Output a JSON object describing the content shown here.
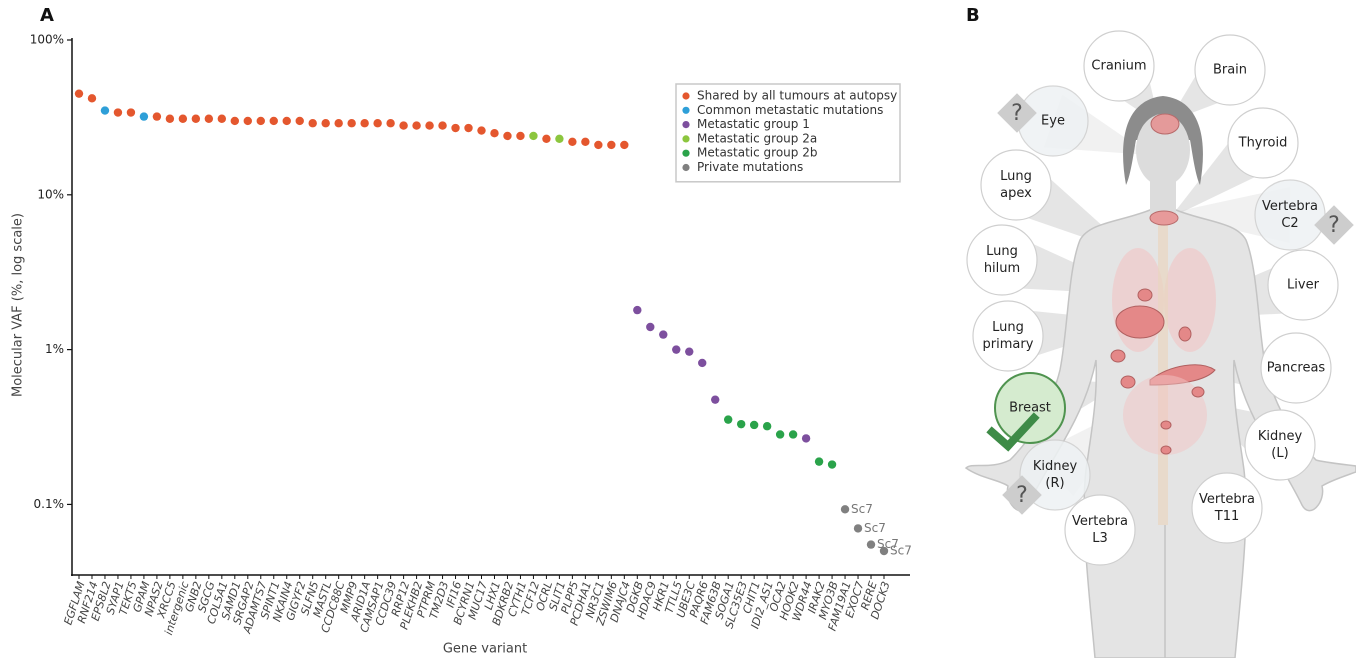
{
  "chart_data": {
    "type": "scatter",
    "panel_label": "A",
    "y_label": "Molecular VAF (%, log scale)",
    "x_label": "Gene variant",
    "log_scale": true,
    "legend": "upper right",
    "ylim": [
      0.035,
      100
    ],
    "yticks": [
      {
        "value": 100,
        "label": "100%"
      },
      {
        "value": 10,
        "label": "10%"
      },
      {
        "value": 1,
        "label": "1%"
      },
      {
        "value": 0.1,
        "label": "0.1%"
      }
    ],
    "categories": [
      "EGFLAM",
      "RNF214",
      "EPS8L2",
      "SYAP1",
      "TEKT5",
      "GPAM",
      "NPAS2",
      "XRCC5",
      "intergenic",
      "GNB2",
      "SGCG",
      "COL5A1",
      "SAMD1",
      "SRGAP2",
      "ADAMTS7",
      "SPINT1",
      "NKAIN4",
      "GIGYF2",
      "SLFN5",
      "MASTL",
      "CCDC88C",
      "MMP9",
      "ARID1A",
      "CAMSAP1",
      "CCDC39",
      "RRP12",
      "PLEKHB2",
      "PTPRM",
      "TM2D3",
      "IFI16",
      "BCYRN1",
      "MUC17",
      "LHX1",
      "BDKRB2",
      "CYTH1",
      "TCF12",
      "OCRL",
      "SLIT1",
      "PLPP5",
      "PCDHA1",
      "NR3C1",
      "ZSWIM6",
      "DNAJC4",
      "DGKB",
      "HDAC9",
      "HKR1",
      "TTLL5",
      "UBE3C",
      "PAQR6",
      "FAM63B",
      "SOGA1",
      "SLC35E3",
      "CHIT1",
      "IDI2_AS1",
      "OCA2",
      "HOOK2",
      "WDR44",
      "IRAK2",
      "MYO3B",
      "FAM19A1",
      "EXOC7",
      "RERE",
      "DOCK3"
    ],
    "series": [
      {
        "name": "Shared by all tumours at autopsy",
        "color": "#e4572e",
        "values": [
          45,
          42,
          null,
          34,
          34,
          null,
          32,
          31,
          31,
          31,
          31,
          31,
          30,
          30,
          30,
          30,
          30,
          30,
          29,
          29,
          29,
          29,
          29,
          29,
          29,
          28,
          28,
          28,
          28,
          27,
          27,
          26,
          25,
          24,
          24,
          null,
          23,
          null,
          22,
          22,
          21,
          21,
          21,
          null,
          null,
          null,
          null,
          null,
          null,
          null,
          null,
          null,
          null,
          null,
          null,
          null,
          null,
          null,
          null,
          null,
          null,
          null,
          null
        ]
      },
      {
        "name": "Common metastatic mutations",
        "color": "#2e9fd8",
        "values": [
          null,
          null,
          35,
          null,
          null,
          32,
          null,
          null,
          null,
          null,
          null,
          null,
          null,
          null,
          null,
          null,
          null,
          null,
          null,
          null,
          null,
          null,
          null,
          null,
          null,
          null,
          null,
          null,
          null,
          null,
          null,
          null,
          null,
          null,
          null,
          null,
          null,
          null,
          null,
          null,
          null,
          null,
          null,
          null,
          null,
          null,
          null,
          null,
          null,
          null,
          null,
          null,
          null,
          null,
          null,
          null,
          null,
          null,
          null,
          null,
          null,
          null,
          null
        ]
      },
      {
        "name": "Metastatic group 1",
        "color": "#7d4f9e",
        "values": [
          null,
          null,
          null,
          null,
          null,
          null,
          null,
          null,
          null,
          null,
          null,
          null,
          null,
          null,
          null,
          null,
          null,
          null,
          null,
          null,
          null,
          null,
          null,
          null,
          null,
          null,
          null,
          null,
          null,
          null,
          null,
          null,
          null,
          null,
          null,
          null,
          null,
          null,
          null,
          null,
          null,
          null,
          null,
          1.8,
          1.4,
          1.25,
          1.0,
          0.97,
          0.82,
          0.475,
          null,
          null,
          null,
          null,
          null,
          null,
          0.267,
          null,
          null,
          null,
          null,
          null,
          null
        ]
      },
      {
        "name": "Metastatic group 2a",
        "color": "#8cc63e",
        "values": [
          null,
          null,
          null,
          null,
          null,
          null,
          null,
          null,
          null,
          null,
          null,
          null,
          null,
          null,
          null,
          null,
          null,
          null,
          null,
          null,
          null,
          null,
          null,
          null,
          null,
          null,
          null,
          null,
          null,
          null,
          null,
          null,
          null,
          null,
          null,
          24,
          null,
          23,
          null,
          null,
          null,
          null,
          null,
          null,
          null,
          null,
          null,
          null,
          null,
          null,
          null,
          null,
          null,
          null,
          null,
          null,
          null,
          null,
          null,
          null,
          null,
          null,
          null
        ]
      },
      {
        "name": "Metastatic group 2b",
        "color": "#2aa34a",
        "values": [
          null,
          null,
          null,
          null,
          null,
          null,
          null,
          null,
          null,
          null,
          null,
          null,
          null,
          null,
          null,
          null,
          null,
          null,
          null,
          null,
          null,
          null,
          null,
          null,
          null,
          null,
          null,
          null,
          null,
          null,
          null,
          null,
          null,
          null,
          null,
          null,
          null,
          null,
          null,
          null,
          null,
          null,
          null,
          null,
          null,
          null,
          null,
          null,
          null,
          null,
          0.353,
          0.33,
          0.326,
          0.32,
          0.283,
          0.283,
          null,
          0.189,
          0.181,
          null,
          null,
          null,
          null
        ]
      },
      {
        "name": "Private mutations",
        "color": "#808080",
        "values": [
          null,
          null,
          null,
          null,
          null,
          null,
          null,
          null,
          null,
          null,
          null,
          null,
          null,
          null,
          null,
          null,
          null,
          null,
          null,
          null,
          null,
          null,
          null,
          null,
          null,
          null,
          null,
          null,
          null,
          null,
          null,
          null,
          null,
          null,
          null,
          null,
          null,
          null,
          null,
          null,
          null,
          null,
          null,
          null,
          null,
          null,
          null,
          null,
          null,
          null,
          null,
          null,
          null,
          null,
          null,
          null,
          null,
          null,
          null,
          0.093,
          0.07,
          0.055,
          0.05
        ],
        "labels": [
          null,
          null,
          null,
          null,
          null,
          null,
          null,
          null,
          null,
          null,
          null,
          null,
          null,
          null,
          null,
          null,
          null,
          null,
          null,
          null,
          null,
          null,
          null,
          null,
          null,
          null,
          null,
          null,
          null,
          null,
          null,
          null,
          null,
          null,
          null,
          null,
          null,
          null,
          null,
          null,
          null,
          null,
          null,
          null,
          null,
          null,
          null,
          null,
          null,
          null,
          null,
          null,
          null,
          null,
          null,
          null,
          null,
          null,
          null,
          "Sc7",
          "Sc7",
          "Sc7",
          "Sc7"
        ]
      }
    ]
  },
  "diagram": {
    "panel_label": "B",
    "sites": [
      {
        "lines": [
          "Cranium"
        ]
      },
      {
        "lines": [
          "Brain"
        ]
      },
      {
        "lines": [
          "Eye"
        ],
        "flag": "?"
      },
      {
        "lines": [
          "Thyroid"
        ]
      },
      {
        "lines": [
          "Lung",
          "apex"
        ]
      },
      {
        "lines": [
          "Vertebra",
          "C2"
        ],
        "flag": "?"
      },
      {
        "lines": [
          "Lung",
          "hilum"
        ]
      },
      {
        "lines": [
          "Liver"
        ]
      },
      {
        "lines": [
          "Lung",
          "primary"
        ]
      },
      {
        "lines": [
          "Pancreas"
        ]
      },
      {
        "lines": [
          "Breast"
        ]
      },
      {
        "lines": [
          "Kidney",
          "(L)"
        ]
      },
      {
        "lines": [
          "Kidney",
          "(R)"
        ],
        "flag": "?"
      },
      {
        "lines": [
          "Vertebra",
          "L3"
        ]
      },
      {
        "lines": [
          "Vertebra",
          "T11"
        ]
      }
    ]
  }
}
